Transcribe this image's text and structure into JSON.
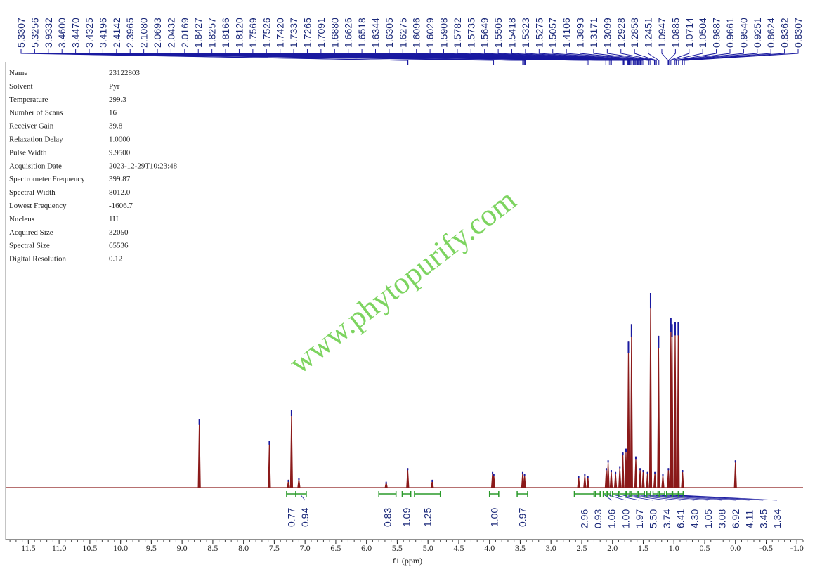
{
  "chart_data": {
    "type": "nmr",
    "parameters": [
      [
        "Name",
        "23122803"
      ],
      [
        "Solvent",
        "Pyr"
      ],
      [
        "Temperature",
        "299.3"
      ],
      [
        "Number of Scans",
        "16"
      ],
      [
        "Receiver Gain",
        "39.8"
      ],
      [
        "Relaxation Delay",
        "1.0000"
      ],
      [
        "Pulse Width",
        "9.9500"
      ],
      [
        "Acquisition Date",
        "2023-12-29T10:23:48"
      ],
      [
        "Spectrometer Frequency",
        "399.87"
      ],
      [
        "Spectral Width",
        "8012.0"
      ],
      [
        "Lowest Frequency",
        "-1606.7"
      ],
      [
        "Nucleus",
        "1H"
      ],
      [
        "Acquired Size",
        "32050"
      ],
      [
        "Spectral Size",
        "65536"
      ],
      [
        "Digital Resolution",
        "0.12"
      ]
    ],
    "peak_labels": [
      "5.3307",
      "5.3256",
      "3.9332",
      "3.4600",
      "3.4470",
      "3.4325",
      "3.4196",
      "2.4142",
      "2.3965",
      "2.1080",
      "2.0693",
      "2.0432",
      "2.0169",
      "1.8427",
      "1.8257",
      "1.8166",
      "1.8120",
      "1.7569",
      "1.7526",
      "1.7420",
      "1.7337",
      "1.7265",
      "1.7091",
      "1.6880",
      "1.6626",
      "1.6518",
      "1.6344",
      "1.6305",
      "1.6275",
      "1.6096",
      "1.6029",
      "1.5908",
      "1.5782",
      "1.5735",
      "1.5649",
      "1.5505",
      "1.5418",
      "1.5323",
      "1.5275",
      "1.5057",
      "1.4106",
      "1.3893",
      "1.3171",
      "1.3099",
      "1.2928",
      "1.2858",
      "1.2451",
      "1.0947",
      "1.0885",
      "1.0714",
      "1.0504",
      "0.9887",
      "0.9661",
      "0.9540",
      "0.9251",
      "0.8624",
      "0.8362",
      "0.8307"
    ],
    "integrals": [
      {
        "label": "0.77",
        "range": [
          7.3,
          7.15
        ]
      },
      {
        "label": "0.94",
        "range": [
          7.15,
          6.98
        ]
      },
      {
        "label": "0.83",
        "range": [
          5.8,
          5.52
        ]
      },
      {
        "label": "1.09",
        "range": [
          5.42,
          5.28
        ]
      },
      {
        "label": "1.25",
        "range": [
          5.22,
          4.8
        ]
      },
      {
        "label": "1.00",
        "range": [
          4.0,
          3.85
        ]
      },
      {
        "label": "0.97",
        "range": [
          3.55,
          3.38
        ]
      },
      {
        "label": "2.96",
        "range": [
          2.62,
          2.3
        ]
      },
      {
        "label": "0.93",
        "range": [
          2.28,
          2.2
        ]
      },
      {
        "label": "1.06",
        "range": [
          2.15,
          2.1
        ]
      },
      {
        "label": "1.00",
        "range": [
          2.08,
          2.03
        ]
      },
      {
        "label": "1.97",
        "range": [
          2.0,
          1.9
        ]
      },
      {
        "label": "5.50",
        "range": [
          1.88,
          1.78
        ]
      },
      {
        "label": "3.74",
        "range": [
          1.77,
          1.72
        ]
      },
      {
        "label": "6.41",
        "range": [
          1.7,
          1.6
        ]
      },
      {
        "label": "4.30",
        "range": [
          1.58,
          1.48
        ]
      },
      {
        "label": "1.05",
        "range": [
          1.44,
          1.38
        ]
      },
      {
        "label": "3.08",
        "range": [
          1.34,
          1.26
        ]
      },
      {
        "label": "6.92",
        "range": [
          1.24,
          1.15
        ]
      },
      {
        "label": "4.11",
        "range": [
          1.12,
          1.03
        ]
      },
      {
        "label": "3.45",
        "range": [
          1.02,
          0.93
        ]
      },
      {
        "label": "1.34",
        "range": [
          0.92,
          0.85
        ]
      }
    ],
    "x": [
      8.72,
      7.58,
      7.27,
      7.22,
      7.1,
      5.68,
      5.33,
      4.93,
      3.95,
      3.93,
      3.46,
      3.43,
      2.55,
      2.45,
      2.4,
      2.1,
      2.07,
      2.02,
      1.95,
      1.88,
      1.83,
      1.78,
      1.74,
      1.69,
      1.62,
      1.55,
      1.5,
      1.43,
      1.38,
      1.31,
      1.25,
      1.18,
      1.09,
      1.05,
      1.03,
      0.98,
      0.93,
      0.86,
      0.0
    ],
    "values": [
      35,
      24,
      4,
      40,
      5,
      3,
      10,
      4,
      8,
      7,
      8,
      7,
      6,
      7,
      6,
      10,
      14,
      9,
      8,
      11,
      18,
      20,
      75,
      84,
      16,
      10,
      9,
      8,
      100,
      8,
      78,
      7,
      10,
      87,
      84,
      85,
      85,
      9,
      14
    ],
    "xlim": [
      11.87,
      -1.1
    ],
    "ylim": [
      0,
      100
    ],
    "xticks": [
      11.5,
      {
        "value": 11,
        "label": "11.0"
      },
      10.5,
      {
        "value": 10,
        "label": "10.0"
      },
      9.5,
      {
        "value": 9,
        "label": "9.0"
      },
      8.5,
      {
        "value": 8,
        "label": "8.0"
      },
      7.5,
      {
        "value": 7,
        "label": "7.0"
      },
      6.5,
      {
        "value": 6,
        "label": "6.0"
      },
      5.5,
      {
        "value": 5,
        "label": "5.0"
      },
      4.5,
      {
        "value": 4,
        "label": "4.0"
      },
      3.5,
      {
        "value": 3,
        "label": "3.0"
      },
      2.5,
      {
        "value": 2,
        "label": "2.0"
      },
      1.5,
      {
        "value": 1,
        "label": "1.0"
      },
      0.5,
      {
        "value": 0,
        "label": "0.0"
      },
      -0.5,
      {
        "value": -1,
        "label": "-1.0"
      }
    ],
    "xlabel": "f1 (ppm)",
    "watermark": "www.phytopurify.com",
    "line_color": "#8b1a1a",
    "tip_color": "#1a1aa0",
    "integral_color": "#2a9a2a"
  }
}
